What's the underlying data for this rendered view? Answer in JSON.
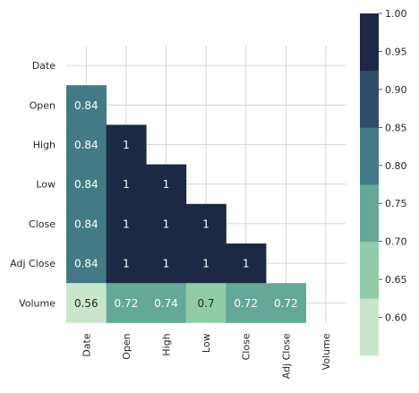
{
  "chart_data": {
    "type": "heatmap",
    "title": "",
    "xlabel": "",
    "ylabel": "",
    "variables": [
      "Date",
      "Open",
      "High",
      "Low",
      "Close",
      "Adj Close",
      "Volume"
    ],
    "mask": "upper-triangle-including-diagonal",
    "grid": true,
    "values": [
      [
        null,
        null,
        null,
        null,
        null,
        null,
        null
      ],
      [
        0.84,
        null,
        null,
        null,
        null,
        null,
        null
      ],
      [
        0.84,
        1,
        null,
        null,
        null,
        null,
        null
      ],
      [
        0.84,
        1,
        1,
        null,
        null,
        null,
        null
      ],
      [
        0.84,
        1,
        1,
        1,
        null,
        null,
        null
      ],
      [
        0.84,
        1,
        1,
        1,
        1,
        null,
        null
      ],
      [
        0.56,
        0.72,
        0.74,
        0.7,
        0.72,
        0.72,
        null
      ]
    ],
    "labels": [
      [
        null,
        null,
        null,
        null,
        null,
        null,
        null
      ],
      [
        "0.84",
        null,
        null,
        null,
        null,
        null,
        null
      ],
      [
        "0.84",
        "1",
        null,
        null,
        null,
        null,
        null
      ],
      [
        "0.84",
        "1",
        "1",
        null,
        null,
        null,
        null
      ],
      [
        "0.84",
        "1",
        "1",
        "1",
        null,
        null,
        null
      ],
      [
        "0.84",
        "1",
        "1",
        "1",
        "1",
        null,
        null
      ],
      [
        "0.56",
        "0.72",
        "0.74",
        "0.7",
        "0.72",
        "0.72",
        null
      ]
    ],
    "colorbar": {
      "range": [
        0.55,
        1.0
      ],
      "ticks": [
        "0.60",
        "0.65",
        "0.70",
        "0.75",
        "0.80",
        "0.85",
        "0.90",
        "0.95",
        "1.00"
      ],
      "tick_values": [
        0.6,
        0.65,
        0.7,
        0.75,
        0.8,
        0.85,
        0.9,
        0.95,
        1.0
      ],
      "bins": [
        {
          "min": 0.55,
          "max": 0.625,
          "color": "#c9e6cc"
        },
        {
          "min": 0.625,
          "max": 0.7,
          "color": "#91cba8"
        },
        {
          "min": 0.7,
          "max": 0.775,
          "color": "#64a898"
        },
        {
          "min": 0.775,
          "max": 0.85,
          "color": "#427b85"
        },
        {
          "min": 0.85,
          "max": 0.925,
          "color": "#2d4c68"
        },
        {
          "min": 0.925,
          "max": 1.0,
          "color": "#1c2844"
        }
      ]
    },
    "colors": {
      "grid": "#cccccc",
      "text_light": "#ffffff",
      "text_dark": "#262626",
      "tick_text": "#262626"
    }
  }
}
